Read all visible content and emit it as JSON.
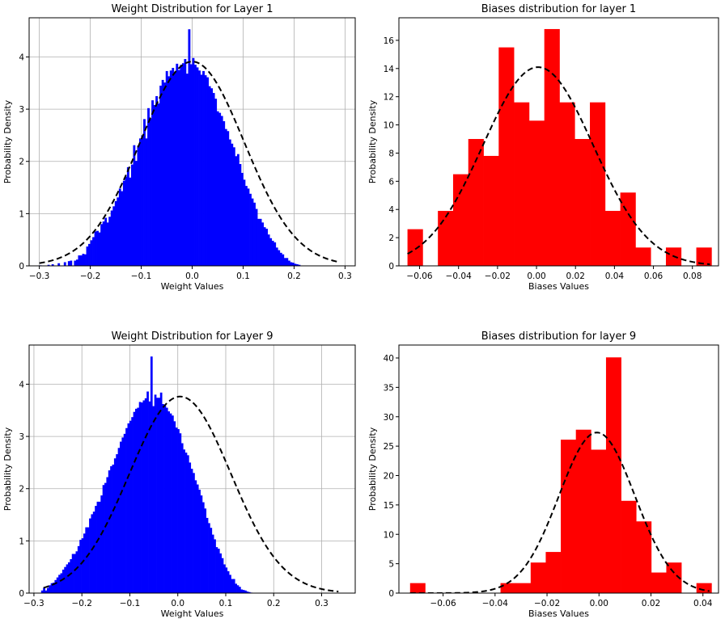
{
  "charts": [
    {
      "type": "histogram",
      "title": "Weight Distribution for Layer 1",
      "xlabel": "Weight Values",
      "ylabel": "Probability Density",
      "xlim": [
        -0.32,
        0.32
      ],
      "ylim": [
        0,
        4.75
      ],
      "xticks": [
        -0.3,
        -0.2,
        -0.1,
        0.0,
        0.1,
        0.2,
        0.3
      ],
      "xtick_labels": [
        "−0.3",
        "−0.2",
        "−0.1",
        "0.0",
        "0.1",
        "0.2",
        "0.3"
      ],
      "yticks": [
        0,
        1,
        2,
        3,
        4
      ],
      "ytick_labels": [
        "0",
        "1",
        "2",
        "3",
        "4"
      ],
      "grid": true,
      "bar_color": "#0000ff",
      "bins": {
        "start": -0.3,
        "width": 0.004,
        "count": 140
      },
      "values": [
        0.01,
        0.0,
        0.0,
        0.0,
        0.02,
        0.0,
        0.03,
        0.0,
        0.0,
        0.05,
        0.0,
        0.0,
        0.07,
        0.0,
        0.09,
        0.1,
        0.0,
        0.1,
        0.12,
        0.2,
        0.2,
        0.23,
        0.22,
        0.37,
        0.42,
        0.49,
        0.55,
        0.66,
        0.67,
        0.64,
        0.8,
        0.85,
        0.92,
        0.83,
        0.94,
        1.06,
        1.14,
        1.24,
        1.31,
        1.48,
        1.43,
        1.63,
        1.71,
        1.89,
        1.69,
        1.94,
        2.31,
        2.01,
        2.3,
        2.44,
        2.5,
        2.81,
        2.44,
        3.02,
        2.82,
        3.17,
        3.08,
        3.25,
        3.11,
        3.45,
        3.56,
        3.51,
        3.73,
        3.63,
        3.74,
        3.79,
        3.72,
        3.87,
        3.75,
        3.85,
        3.88,
        3.96,
        3.68,
        4.53,
        3.86,
        3.98,
        3.85,
        3.8,
        3.74,
        3.66,
        3.73,
        3.65,
        3.61,
        3.44,
        3.4,
        3.31,
        3.2,
        2.96,
        2.93,
        2.87,
        2.77,
        2.62,
        2.58,
        2.42,
        2.34,
        2.27,
        2.1,
        2.14,
        1.95,
        1.78,
        1.65,
        1.53,
        1.48,
        1.38,
        1.29,
        1.21,
        1.09,
        0.9,
        0.9,
        0.83,
        0.74,
        0.71,
        0.6,
        0.53,
        0.48,
        0.45,
        0.35,
        0.3,
        0.25,
        0.22,
        0.15,
        0.15,
        0.1,
        0.07,
        0.06,
        0.04,
        0.03,
        0.02,
        0.0,
        0.0,
        0.0,
        0.0,
        0.0,
        0.0,
        0.0,
        0.0,
        0.0,
        0.0,
        0.0,
        0.0
      ],
      "fit": {
        "mean": 0.0,
        "std": 0.102,
        "x_range": [
          -0.3,
          0.29
        ],
        "color": "#000000",
        "style": "dashed"
      }
    },
    {
      "type": "histogram",
      "title": "Biases distribution for layer 1",
      "xlabel": "Biases Values",
      "ylabel": "Probability Density",
      "xlim": [
        -0.0706,
        0.0934
      ],
      "ylim": [
        0,
        17.6
      ],
      "xticks": [
        -0.06,
        -0.04,
        -0.02,
        0.0,
        0.02,
        0.04,
        0.06,
        0.08
      ],
      "xtick_labels": [
        "−0.06",
        "−0.04",
        "−0.02",
        "0.00",
        "0.02",
        "0.04",
        "0.06",
        "0.08"
      ],
      "yticks": [
        0,
        2,
        4,
        6,
        8,
        10,
        12,
        14,
        16
      ],
      "ytick_labels": [
        "0",
        "2",
        "4",
        "6",
        "8",
        "10",
        "12",
        "14",
        "16"
      ],
      "grid": false,
      "bar_color": "#ff0000",
      "bins": {
        "start": -0.0662,
        "width": 0.0078,
        "count": 20
      },
      "values": [
        2.6,
        0.0,
        3.9,
        6.5,
        9.0,
        7.8,
        15.5,
        11.6,
        10.3,
        16.8,
        11.6,
        9.0,
        11.6,
        3.9,
        5.2,
        1.3,
        0.0,
        1.3,
        0.0,
        1.3
      ],
      "fit": {
        "mean": 0.0008,
        "std": 0.0283,
        "x_range": [
          -0.0662,
          0.089
        ],
        "color": "#000000",
        "style": "dashed"
      }
    },
    {
      "type": "histogram",
      "title": "Weight Distribution for Layer 9",
      "xlabel": "Weight Values",
      "ylabel": "Probability Density",
      "xlim": [
        -0.31,
        0.37
      ],
      "ylim": [
        0,
        4.75
      ],
      "xticks": [
        -0.3,
        -0.2,
        -0.1,
        0.0,
        0.1,
        0.2,
        0.3
      ],
      "xtick_labels": [
        "−0.3",
        "−0.2",
        "−0.1",
        "0.0",
        "0.1",
        "0.2",
        "0.3"
      ],
      "yticks": [
        0,
        1,
        2,
        3,
        4
      ],
      "ytick_labels": [
        "0",
        "1",
        "2",
        "3",
        "4"
      ],
      "grid": true,
      "bar_color": "#0000ff",
      "bins": {
        "start": -0.285,
        "width": 0.004,
        "count": 140
      },
      "values": [
        0.05,
        0.1,
        0.05,
        0.1,
        0.15,
        0.19,
        0.2,
        0.25,
        0.3,
        0.35,
        0.38,
        0.45,
        0.5,
        0.55,
        0.59,
        0.65,
        0.75,
        0.75,
        0.8,
        0.9,
        1.02,
        1.05,
        1.14,
        1.26,
        1.26,
        1.43,
        1.51,
        1.56,
        1.67,
        1.75,
        1.75,
        1.87,
        2.07,
        2.11,
        2.22,
        2.35,
        2.43,
        2.46,
        2.58,
        2.66,
        2.78,
        2.9,
        2.98,
        3.05,
        3.16,
        3.25,
        3.3,
        3.37,
        3.47,
        3.53,
        3.55,
        3.66,
        3.65,
        3.69,
        3.73,
        3.86,
        3.67,
        4.53,
        3.58,
        3.8,
        3.74,
        3.74,
        3.84,
        3.62,
        3.59,
        3.55,
        3.48,
        3.44,
        3.4,
        3.29,
        3.17,
        3.14,
        3.06,
        2.87,
        2.75,
        2.69,
        2.64,
        2.5,
        2.38,
        2.3,
        2.16,
        2.08,
        1.98,
        1.87,
        1.74,
        1.62,
        1.44,
        1.34,
        1.25,
        1.12,
        1.03,
        0.88,
        0.85,
        0.76,
        0.67,
        0.55,
        0.49,
        0.42,
        0.35,
        0.27,
        0.27,
        0.18,
        0.15,
        0.12,
        0.07,
        0.06,
        0.05,
        0.03,
        0.02,
        0.01,
        0.0,
        0.0,
        0.0,
        0.0,
        0.0,
        0.0,
        0.0,
        0.0,
        0.0,
        0.0,
        0.0,
        0.0,
        0.0,
        0.0,
        0.0,
        0.0,
        0.0,
        0.0,
        0.0,
        0.0,
        0.0,
        0.0,
        0.0,
        0.0,
        0.0,
        0.0,
        0.0,
        0.0,
        0.0,
        0.0
      ],
      "fit": {
        "mean": 0.005,
        "std": 0.106,
        "x_range": [
          -0.28,
          0.335
        ],
        "color": "#000000",
        "style": "dashed"
      }
    },
    {
      "type": "histogram",
      "title": "Biases distribution for layer 9",
      "xlabel": "Biases Values",
      "ylabel": "Probability Density",
      "xlim": [
        -0.077,
        0.046
      ],
      "ylim": [
        0,
        42.2
      ],
      "xticks": [
        -0.06,
        -0.04,
        -0.02,
        0.0,
        0.02,
        0.04
      ],
      "xtick_labels": [
        "−0.06",
        "−0.04",
        "−0.02",
        "0.00",
        "0.02",
        "0.04"
      ],
      "yticks": [
        0,
        5,
        10,
        15,
        20,
        25,
        30,
        35,
        40
      ],
      "ytick_labels": [
        "0",
        "5",
        "10",
        "15",
        "20",
        "25",
        "30",
        "35",
        "40"
      ],
      "grid": false,
      "bar_color": "#ff0000",
      "bins": {
        "start": -0.0727,
        "width": 0.0058,
        "count": 20
      },
      "values": [
        1.7,
        0.0,
        0.0,
        0.0,
        0.0,
        0.0,
        1.7,
        1.7,
        5.2,
        7.0,
        26.1,
        27.8,
        24.4,
        40.1,
        15.7,
        12.2,
        3.5,
        5.2,
        0.0,
        1.7
      ],
      "fit": {
        "mean": -0.0008,
        "std": 0.0146,
        "x_range": [
          -0.0727,
          0.0425
        ],
        "color": "#000000",
        "style": "dashed"
      }
    }
  ]
}
